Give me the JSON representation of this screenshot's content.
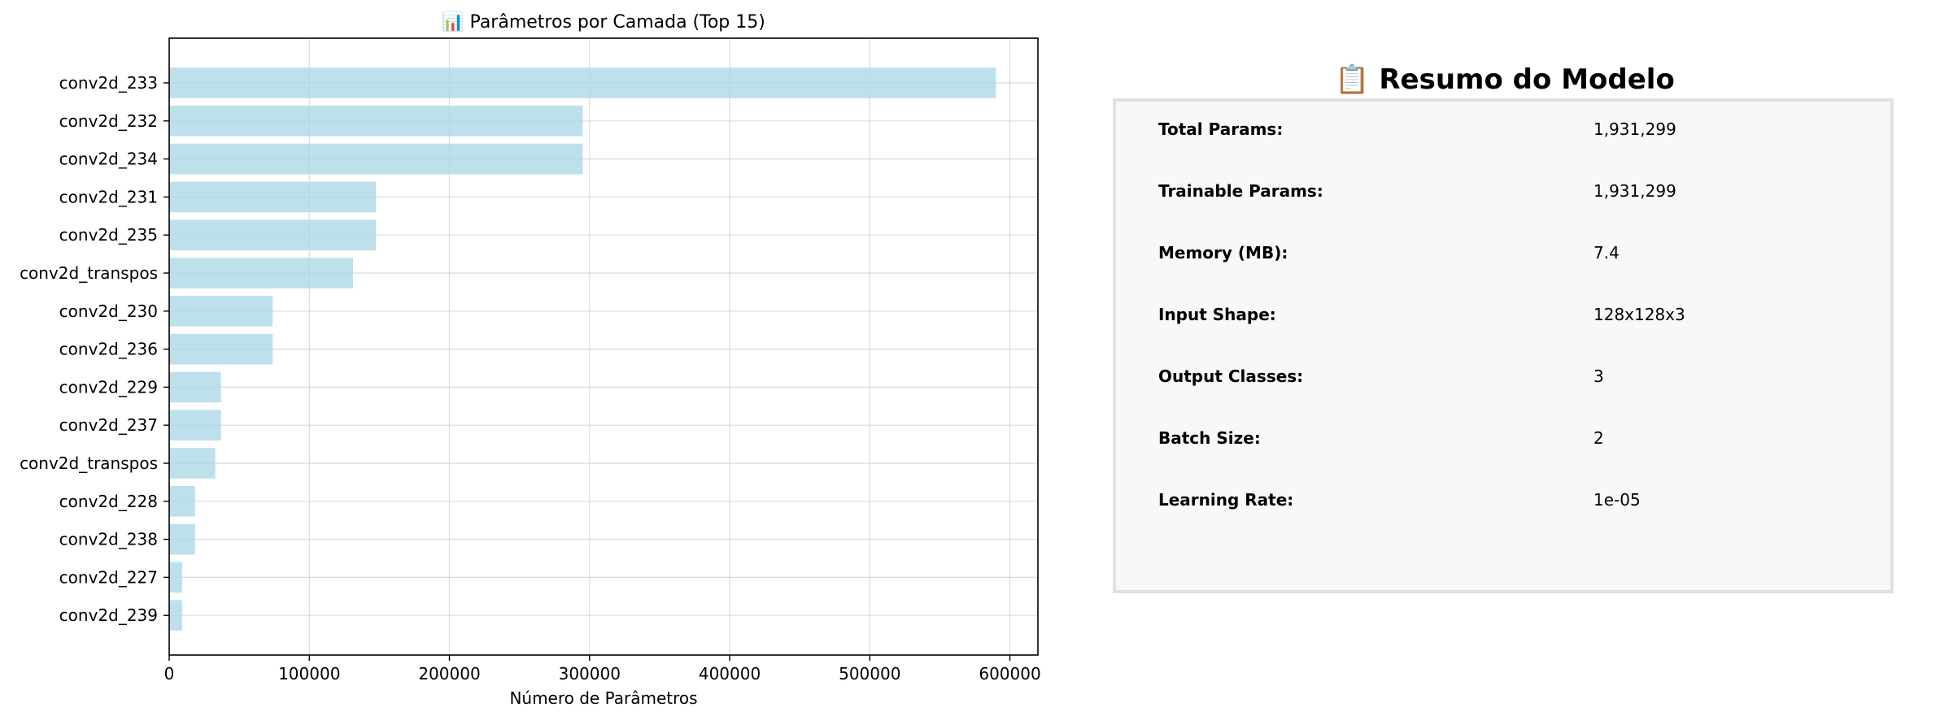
{
  "chart_data": {
    "type": "bar",
    "orientation": "horizontal",
    "title": "📊 Parâmetros por Camada (Top 15)",
    "xlabel": "Número de Parâmetros",
    "ylabel": "",
    "xlim": [
      0,
      620000
    ],
    "xticks": [
      0,
      100000,
      200000,
      300000,
      400000,
      500000,
      600000
    ],
    "grid": true,
    "bar_color": "#add8e6",
    "categories": [
      "conv2d_233",
      "conv2d_232",
      "conv2d_234",
      "conv2d_231",
      "conv2d_235",
      "conv2d_transpos",
      "conv2d_230",
      "conv2d_236",
      "conv2d_229",
      "conv2d_237",
      "conv2d_transpos",
      "conv2d_228",
      "conv2d_238",
      "conv2d_227",
      "conv2d_239"
    ],
    "values": [
      590080,
      295168,
      295168,
      147584,
      147584,
      131200,
      73856,
      73856,
      36928,
      36928,
      32832,
      18496,
      18496,
      9248,
      9248
    ]
  },
  "summary": {
    "title": "📋 Resumo do Modelo",
    "rows": [
      {
        "label": "Total Params:",
        "value": "1,931,299"
      },
      {
        "label": "Trainable Params:",
        "value": "1,931,299"
      },
      {
        "label": "Memory (MB):",
        "value": "7.4"
      },
      {
        "label": "Input Shape:",
        "value": "128x128x3"
      },
      {
        "label": "Output Classes:",
        "value": "3"
      },
      {
        "label": "Batch Size:",
        "value": "2"
      },
      {
        "label": "Learning Rate:",
        "value": "1e-05"
      }
    ]
  }
}
